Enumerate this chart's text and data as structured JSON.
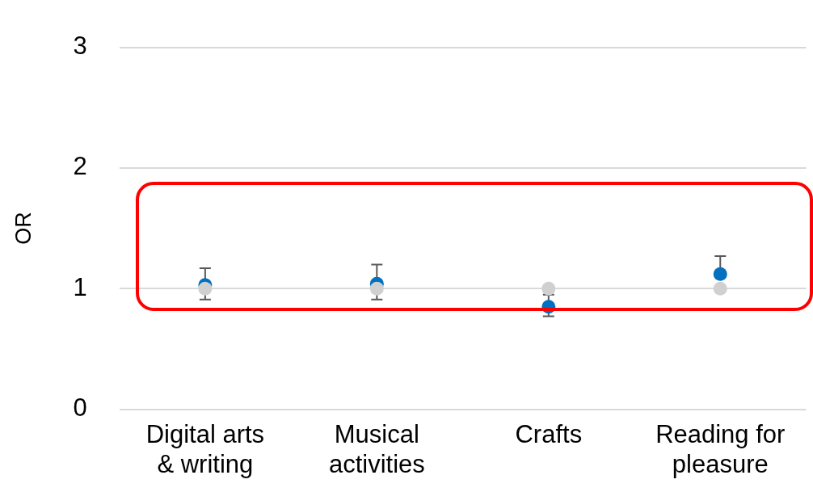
{
  "chart_data": {
    "type": "scatter",
    "ylabel": "OR",
    "categories": [
      "Digital arts & writing",
      "Musical activities",
      "Crafts",
      "Reading for pleasure"
    ],
    "series": [
      {
        "color": "#0070c0",
        "values": [
          1.03,
          1.04,
          0.85,
          1.12
        ],
        "errors": [
          [
            0.91,
            1.17
          ],
          [
            0.91,
            1.2
          ],
          [
            0.77,
            0.95
          ],
          [
            1.12,
            1.27
          ]
        ]
      },
      {
        "color": "#d0d0d0",
        "values": [
          1,
          1,
          1,
          1
        ]
      }
    ],
    "ylim": [
      0,
      3
    ],
    "yticks": [
      0,
      1,
      2,
      3
    ],
    "grid": "y",
    "legend": false,
    "marker": "circle"
  }
}
